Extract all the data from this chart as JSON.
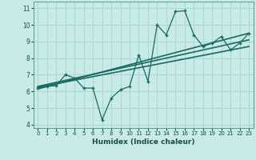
{
  "title": "",
  "xlabel": "Humidex (Indice chaleur)",
  "ylabel": "",
  "bg_color": "#c8ebe8",
  "grid_color": "#a8d8d0",
  "line_color": "#1a6a60",
  "xlim": [
    -0.5,
    23.5
  ],
  "ylim": [
    3.8,
    11.4
  ],
  "xticks": [
    0,
    1,
    2,
    3,
    4,
    5,
    6,
    7,
    8,
    9,
    10,
    11,
    12,
    13,
    14,
    15,
    16,
    17,
    18,
    19,
    20,
    21,
    22,
    23
  ],
  "yticks": [
    4,
    5,
    6,
    7,
    8,
    9,
    10,
    11
  ],
  "zigzag_x": [
    0,
    1,
    2,
    3,
    4,
    5,
    6,
    7,
    8,
    9,
    10,
    11,
    12,
    13,
    14,
    15,
    16,
    17,
    18,
    19,
    20,
    21,
    22,
    23
  ],
  "zigzag_y": [
    6.2,
    6.3,
    6.35,
    7.0,
    6.8,
    6.2,
    6.2,
    4.3,
    5.6,
    6.1,
    6.3,
    8.2,
    6.6,
    10.0,
    9.4,
    10.8,
    10.85,
    9.4,
    8.7,
    8.9,
    9.3,
    8.5,
    8.9,
    9.5
  ],
  "trend1_x": [
    0,
    23
  ],
  "trend1_y": [
    6.15,
    9.5
  ],
  "trend2_x": [
    0,
    23
  ],
  "trend2_y": [
    6.25,
    8.7
  ],
  "trend3_x": [
    0,
    23
  ],
  "trend3_y": [
    6.3,
    9.1
  ]
}
